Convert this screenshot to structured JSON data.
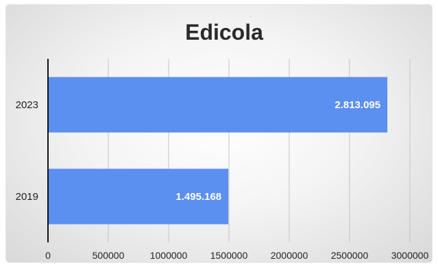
{
  "chart_data": {
    "type": "bar",
    "orientation": "horizontal",
    "title": "Edicola",
    "categories": [
      "2023",
      "2019"
    ],
    "values": [
      2813095,
      1495168
    ],
    "data_labels": [
      "2.813.095",
      "1.495.168"
    ],
    "xlim": [
      0,
      3000000
    ],
    "x_ticks": [
      "0",
      "500000",
      "1000000",
      "1500000",
      "2000000",
      "2500000",
      "3000000"
    ],
    "grid": true,
    "legend": "none",
    "bar_color": "#5b8ff0"
  }
}
